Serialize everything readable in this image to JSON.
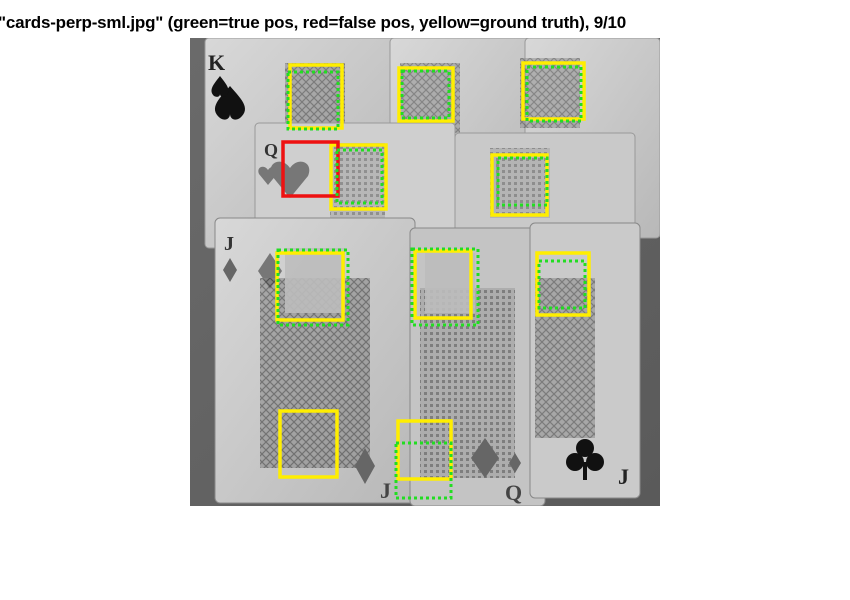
{
  "figure": {
    "title": ": \"cards-perp-sml.jpg\" (green=true pos, red=false pos, yellow=ground truth), 9/10"
  },
  "legend_colors": {
    "true_pos": "#22dd22",
    "false_pos": "#ee1111",
    "ground_truth": "#ffee00"
  },
  "image": {
    "subject": "playing cards (kings, queens, jacks) grayscale photo"
  }
}
